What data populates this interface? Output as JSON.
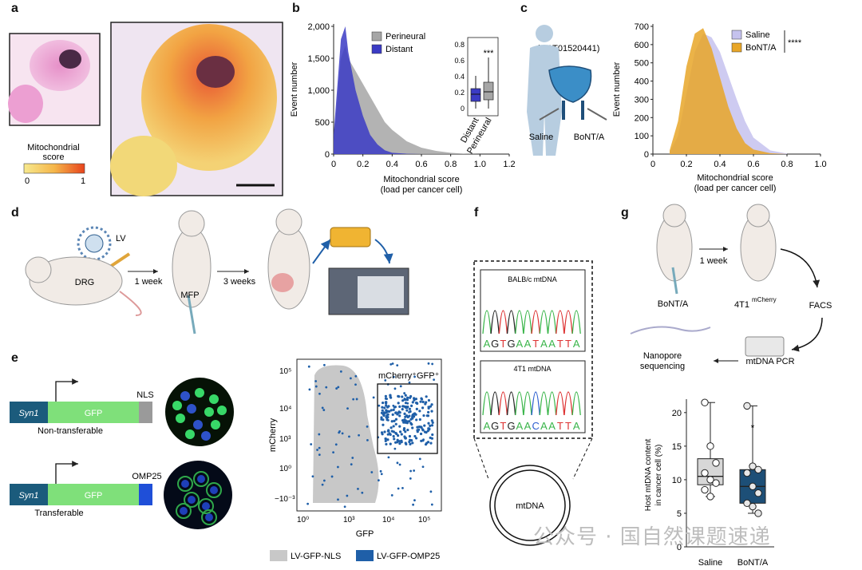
{
  "panels": {
    "a": "a",
    "b": "b",
    "c": "c",
    "d": "d",
    "e": "e",
    "f": "f",
    "g": "g"
  },
  "panel_a": {
    "legend_title_1": "Mitochondrial",
    "legend_title_2": "score",
    "legend_min": "0",
    "legend_max": "1",
    "colors": {
      "low": "#f7e98e",
      "high": "#e8431c"
    }
  },
  "panel_b": {
    "ylabel": "Event number",
    "xlabel_1": "Mitochondrial score",
    "xlabel_2": "(load per cancer cell)",
    "legend": [
      "Perineural",
      "Distant"
    ],
    "colors": {
      "perineural": "#a6a6a6",
      "distant": "#3b3bc4"
    },
    "yticks": [
      "0",
      "500",
      "1,000",
      "1,500",
      "2,000"
    ],
    "xticks": [
      "0",
      "0.2",
      "0.4",
      "0.6",
      "0.8",
      "1.0",
      "1.2"
    ],
    "inset": {
      "yticks": [
        "0",
        "0.2",
        "0.4",
        "0.6",
        "0.8"
      ],
      "xlabels": [
        "Distant",
        "Perineural"
      ],
      "sig": "***"
    }
  },
  "panel_c": {
    "trial": "(NCT01520441)",
    "saline": "Saline",
    "botox": "BoNT/A",
    "ylabel": "Event number",
    "xlabel_1": "Mitochondrial score",
    "xlabel_2": "(load per cancer cell)",
    "legend": [
      "Saline",
      "BoNT/A"
    ],
    "sig": "****",
    "colors": {
      "saline": "#c5c2ee",
      "botox": "#e8a628"
    },
    "yticks": [
      "0",
      "100",
      "200",
      "300",
      "400",
      "500",
      "600",
      "700"
    ],
    "xticks": [
      "0",
      "0.2",
      "0.4",
      "0.6",
      "0.8",
      "1.0"
    ]
  },
  "panel_d": {
    "lv": "LV",
    "drg": "DRG",
    "one_week": "1 week",
    "mfp": "MFP",
    "three_weeks": "3 weeks"
  },
  "panel_e": {
    "syn1": "Syn1",
    "gfp": "GFP",
    "nls": "NLS",
    "omp25": "OMP25",
    "nontransferable": "Non-transferable",
    "transferable": "Transferable",
    "gate_label": "mCherry⁺GFP⁺",
    "ylabel": "mCherry",
    "xlabel": "GFP",
    "legend": [
      "LV-GFP-NLS",
      "LV-GFP-OMP25"
    ],
    "colors": {
      "nls": "#c8c8c8",
      "omp25": "#1f5fa8"
    }
  },
  "panel_f": {
    "trace1_title": "BALB/c mtDNA",
    "trace2_title": "4T1 mtDNA",
    "seq1": [
      "A",
      "G",
      "T",
      "G",
      "A",
      "A",
      "T",
      "A",
      "A",
      "T",
      "T",
      "A"
    ],
    "seq2": [
      "A",
      "G",
      "T",
      "G",
      "A",
      "A",
      "C",
      "A",
      "A",
      "T",
      "T",
      "A"
    ],
    "circle_label": "mtDNA"
  },
  "panel_g": {
    "botox": "BoNT/A",
    "one_week": "1 week",
    "cells": "4T1",
    "cells_sup": "mCherry",
    "facs": "FACS",
    "pcr": "mtDNA PCR",
    "nanopore_1": "Nanopore",
    "nanopore_2": "sequencing",
    "ylabel_1": "Host mtDNA content",
    "ylabel_2": "in cancer cell (%)",
    "yticks": [
      "0",
      "5",
      "10",
      "15",
      "20"
    ],
    "categories": [
      "Saline",
      "BoNT/A"
    ],
    "sig": "*"
  },
  "watermark": "公众号 · 国自然课题速递",
  "chart_data": [
    {
      "type": "area",
      "panel": "b",
      "xlabel": "Mitochondrial score (load per cancer cell)",
      "ylabel": "Event number",
      "xlim": [
        0,
        1.2
      ],
      "ylim": [
        0,
        2000
      ],
      "x": [
        0,
        0.05,
        0.08,
        0.1,
        0.15,
        0.2,
        0.25,
        0.3,
        0.35,
        0.4,
        0.5,
        0.6,
        0.7,
        0.8,
        0.9,
        1.0
      ],
      "series": [
        {
          "name": "Perineural",
          "values": [
            200,
            1500,
            1700,
            1500,
            1300,
            1100,
            900,
            700,
            500,
            380,
            200,
            100,
            50,
            20,
            5,
            0
          ]
        },
        {
          "name": "Distant",
          "values": [
            300,
            1800,
            2000,
            1600,
            1000,
            600,
            300,
            150,
            60,
            20,
            5,
            0,
            0,
            0,
            0,
            0
          ]
        }
      ]
    },
    {
      "type": "area",
      "panel": "c",
      "xlabel": "Mitochondrial score (load per cancer cell)",
      "ylabel": "Event number",
      "xlim": [
        0,
        1.0
      ],
      "ylim": [
        0,
        700
      ],
      "x": [
        0.1,
        0.15,
        0.2,
        0.25,
        0.3,
        0.35,
        0.4,
        0.45,
        0.5,
        0.55,
        0.6,
        0.7,
        0.8
      ],
      "series": [
        {
          "name": "Saline",
          "values": [
            10,
            100,
            330,
            560,
            660,
            640,
            560,
            430,
            300,
            180,
            90,
            20,
            3
          ]
        },
        {
          "name": "BoNT/A",
          "values": [
            20,
            180,
            480,
            660,
            690,
            580,
            420,
            260,
            140,
            60,
            25,
            5,
            0
          ]
        }
      ]
    },
    {
      "type": "box",
      "panel": "g",
      "ylabel": "Host mtDNA content in cancer cell (%)",
      "ylim": [
        0,
        22
      ],
      "categories": [
        "Saline",
        "BoNT/A"
      ],
      "points": [
        [
          21.5,
          15,
          12.5,
          11,
          10,
          9.5,
          8.5,
          7.5
        ],
        [
          21,
          12,
          11.5,
          11,
          9,
          8,
          6.5,
          6,
          5
        ]
      ]
    }
  ]
}
